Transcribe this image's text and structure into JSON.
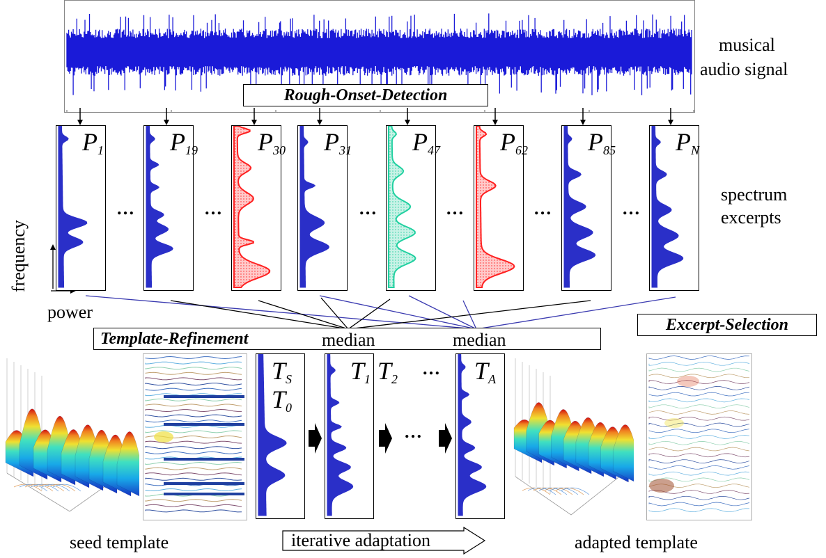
{
  "labels": {
    "musical_audio_signal": [
      "musical",
      "audio signal"
    ],
    "rough_onset_detection": "Rough-Onset-Detection",
    "spectrum_excerpts": [
      "spectrum",
      "excerpts"
    ],
    "frequency_axis": "frequency",
    "power_axis": "power",
    "template_refinement": "Template-Refinement",
    "median_1": "median",
    "median_2": "median",
    "excerpt_selection": "Excerpt-Selection",
    "seed_template": "seed template",
    "iterative_adaptation": "iterative adaptation",
    "adapted_template": "adapted template",
    "ellipsis": "…"
  },
  "excerpts": [
    {
      "base": "P",
      "sub": "1",
      "color": "blue"
    },
    {
      "base": "P",
      "sub": "19",
      "color": "blue"
    },
    {
      "base": "P",
      "sub": "30",
      "color": "red"
    },
    {
      "base": "P",
      "sub": "31",
      "color": "blue"
    },
    {
      "base": "P",
      "sub": "47",
      "color": "teal"
    },
    {
      "base": "P",
      "sub": "62",
      "color": "red"
    },
    {
      "base": "P",
      "sub": "85",
      "color": "blue"
    },
    {
      "base": "P",
      "sub": "N",
      "color": "blue"
    }
  ],
  "templates": {
    "seed": {
      "label1_base": "T",
      "label1_sub": "S",
      "label2_base": "T",
      "label2_sub": "0"
    },
    "t1": {
      "base": "T",
      "sub": "1"
    },
    "t2": {
      "base": "T",
      "sub": "2"
    },
    "ta": {
      "base": "T",
      "sub": "A"
    }
  },
  "colors": {
    "blue": "#2a2fc8",
    "red": "#ff2020",
    "teal": "#20d0a0",
    "waveform": "#1a1ad8",
    "selection_blue": "#3a3ab0"
  }
}
